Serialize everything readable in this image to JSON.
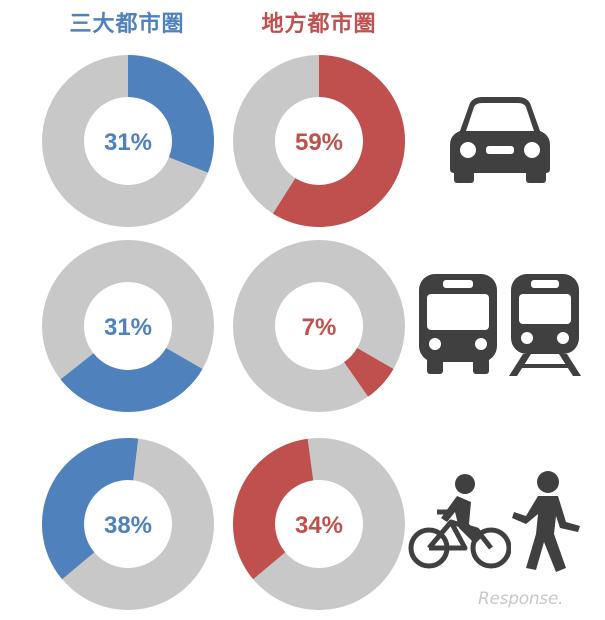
{
  "headers": {
    "left": "三大都市圏",
    "right": "地方都市圏"
  },
  "colors": {
    "left": "#4f81bd",
    "right": "#c0504d",
    "remainder": "#c8c8c8",
    "icon": "#404040"
  },
  "icons": {
    "row1": "car-icon",
    "row2": [
      "bus-icon",
      "train-icon"
    ],
    "row3": [
      "bicycle-icon",
      "pedestrian-icon"
    ]
  },
  "watermark": "Response.",
  "chart_data": {
    "type": "pie",
    "series": [
      {
        "name": "三大都市圏",
        "values": [
          31,
          31,
          38
        ],
        "labels": [
          "31%",
          "31%",
          "38%"
        ]
      },
      {
        "name": "地方都市圏",
        "values": [
          59,
          7,
          34
        ],
        "labels": [
          "59%",
          "7%",
          "34%"
        ]
      }
    ],
    "rows": [
      {
        "icon": "car-icon",
        "start_angle_deg": 0
      },
      {
        "icon": "bus-train-icon",
        "start_angle_deg": 120
      },
      {
        "icon": "bike-walk-icon",
        "start_angle_deg": 230
      }
    ]
  }
}
